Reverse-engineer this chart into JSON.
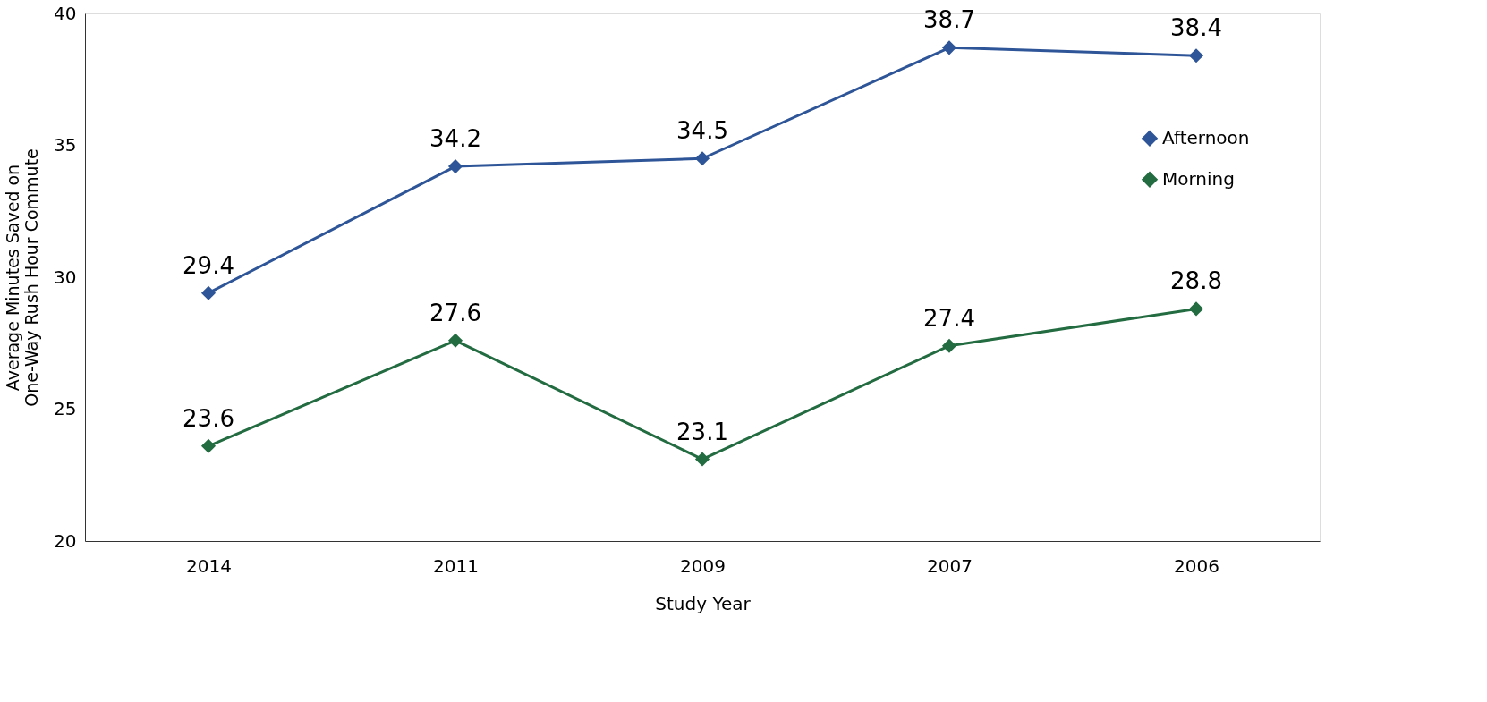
{
  "chart_data": {
    "type": "line",
    "xlabel": "Study Year",
    "ylabel": "Average Minutes Saved on One-Way Rush Hour Commute",
    "categories": [
      "2014",
      "2011",
      "2009",
      "2007",
      "2006"
    ],
    "series": [
      {
        "name": "Afternoon",
        "color": "#2e5597",
        "values": [
          29.4,
          34.2,
          34.5,
          38.7,
          38.4
        ]
      },
      {
        "name": "Morning",
        "color": "#236b40",
        "values": [
          23.6,
          27.6,
          23.1,
          27.4,
          28.8
        ]
      }
    ],
    "ylim": [
      20,
      40
    ],
    "yticks": [
      20,
      25,
      30,
      35,
      40
    ],
    "grid": false,
    "legend": "right",
    "marker": "diamond",
    "line_style": "solid",
    "data_labels": true
  }
}
